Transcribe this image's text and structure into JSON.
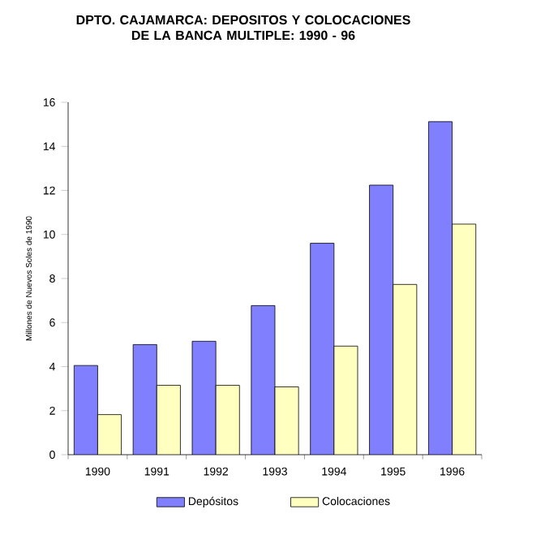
{
  "chart_data": {
    "type": "bar",
    "title": "DPTO. CAJAMARCA:  DEPOSITOS Y COLOCACIONES DE LA BANCA MULTIPLE: 1990 - 96",
    "ylabel": "Millones de Nuevos Soles de 1990",
    "categories": [
      "1990",
      "1991",
      "1992",
      "1993",
      "1994",
      "1995",
      "1996"
    ],
    "series": [
      {
        "name": "Depósitos",
        "color": "#8080ff",
        "values": [
          4.05,
          5.0,
          5.15,
          6.77,
          9.6,
          12.24,
          15.12
        ]
      },
      {
        "name": "Colocaciones",
        "color": "#ffffc0",
        "values": [
          1.82,
          3.15,
          3.15,
          3.08,
          4.93,
          7.73,
          10.47
        ]
      }
    ],
    "ylim": [
      0,
      16
    ],
    "yticks": [
      0,
      2,
      4,
      6,
      8,
      10,
      12,
      14,
      16
    ],
    "legend": "bottom"
  }
}
